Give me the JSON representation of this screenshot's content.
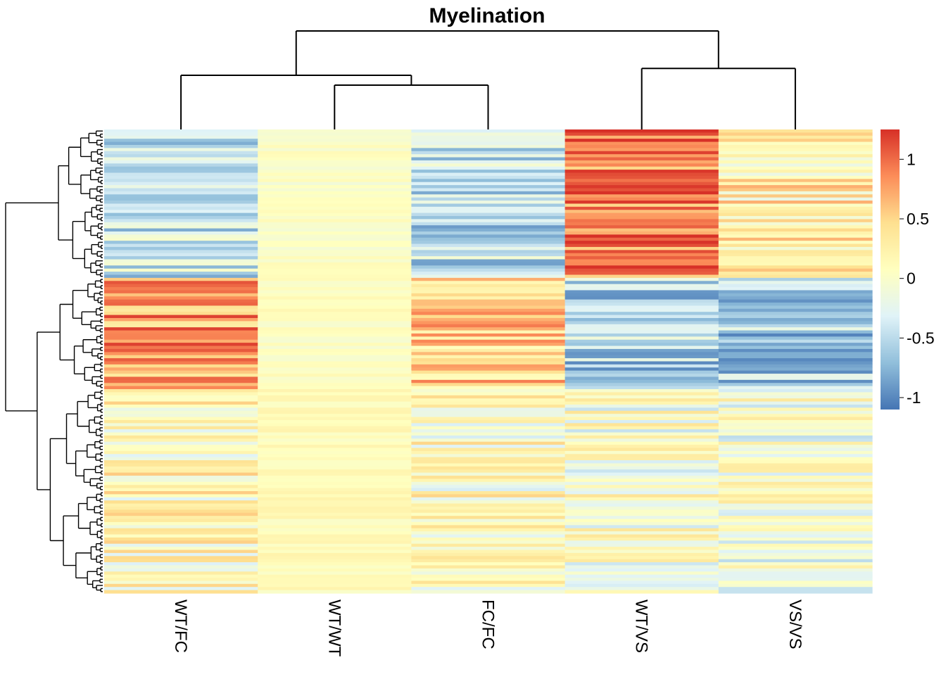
{
  "chart_data": {
    "type": "heatmap",
    "title": "Myelination",
    "columns": [
      "WT/FC",
      "WT/WT",
      "FC/FC",
      "WT/VS",
      "VS/VS"
    ],
    "row_count": 150,
    "color_scale": {
      "min": -1.1,
      "max": 1.25,
      "colors": [
        "#4575B4",
        "#91BFDB",
        "#E0F3F8",
        "#FFFFBF",
        "#FEE090",
        "#FC8D59",
        "#D73027"
      ],
      "ticks": [
        {
          "value": -1,
          "label": "-1"
        },
        {
          "value": -0.5,
          "label": "-0.5"
        },
        {
          "value": 0,
          "label": "0"
        },
        {
          "value": 0.5,
          "label": "0.5"
        },
        {
          "value": 1,
          "label": "1"
        }
      ]
    },
    "column_dendrogram": {
      "order": [
        "WT/FC",
        "WT/WT",
        "FC/FC",
        "WT/VS",
        "VS/VS"
      ],
      "merges": [
        {
          "left": "WT/WT",
          "right": "FC/FC",
          "height": 0.45
        },
        {
          "left": "WT/FC",
          "right": "(WT/WT,FC/FC)",
          "height": 0.55
        },
        {
          "left": "WT/VS",
          "right": "VS/VS",
          "height": 0.62
        },
        {
          "left": "(WT/FC,WT/WT,FC/FC)",
          "right": "(WT/VS,VS/VS)",
          "height": 1.0
        }
      ]
    },
    "row_clusters": [
      {
        "rows": [
          0,
          48
        ],
        "values": [
          -0.45,
          0.02,
          -0.45,
          0.95,
          0.25
        ]
      },
      {
        "rows": [
          48,
          84
        ],
        "values": [
          0.75,
          0.06,
          0.5,
          -0.55,
          -0.6
        ]
      },
      {
        "rows": [
          84,
          150
        ],
        "values": [
          0.12,
          0.12,
          0.08,
          0.0,
          -0.05
        ]
      }
    ],
    "legend_position": "right",
    "grid": false
  }
}
